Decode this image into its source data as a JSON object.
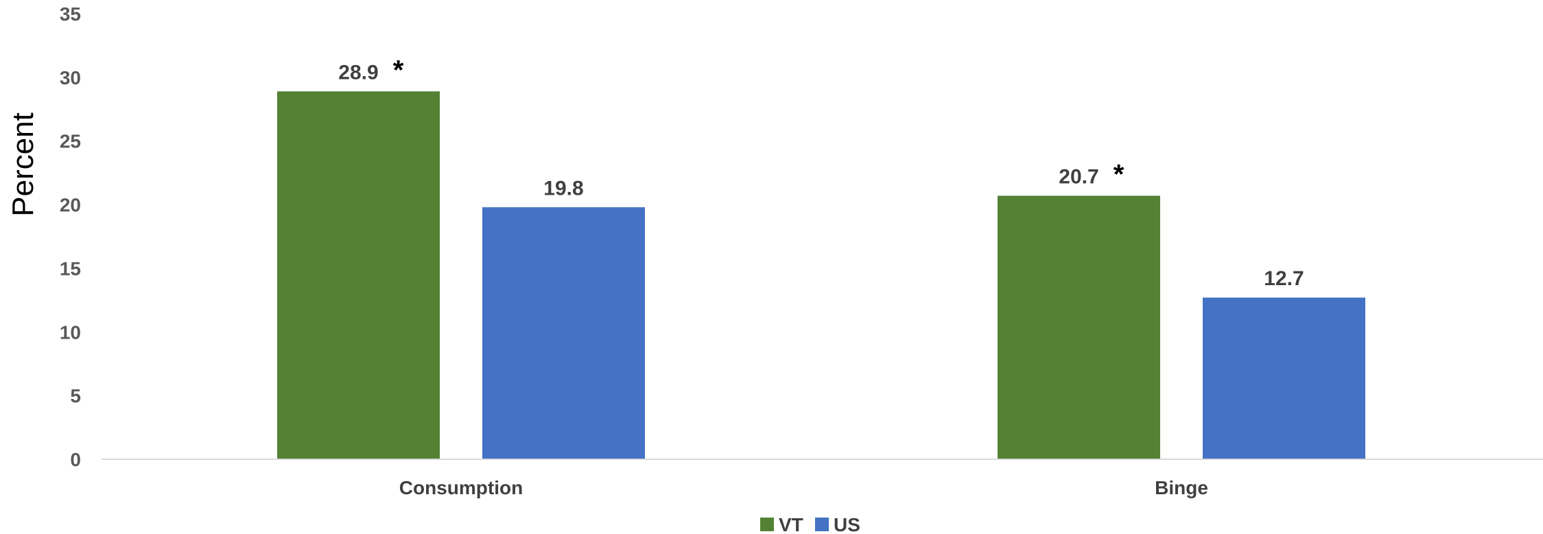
{
  "chart_data": {
    "type": "bar",
    "categories": [
      "Consumption",
      "Binge"
    ],
    "series": [
      {
        "name": "VT",
        "values": [
          28.9,
          20.7
        ],
        "color": "#548235"
      },
      {
        "name": "US",
        "values": [
          19.8,
          12.7
        ],
        "color": "#4472C4"
      }
    ],
    "data_labels": [
      [
        "28.9",
        "20.7"
      ],
      [
        "19.8",
        "12.7"
      ]
    ],
    "annotations": [
      {
        "series": 0,
        "category": 0,
        "text": "*"
      },
      {
        "series": 0,
        "category": 1,
        "text": "*"
      }
    ],
    "ylabel": "Percent",
    "xlabel": "",
    "ylim": [
      0,
      35
    ],
    "yticks": [
      0,
      5,
      10,
      15,
      20,
      25,
      30,
      35
    ],
    "ytick_labels": [
      "0",
      "5",
      "10",
      "15",
      "20",
      "25",
      "30",
      "35"
    ],
    "grid": false,
    "legend_position": "bottom-center"
  }
}
